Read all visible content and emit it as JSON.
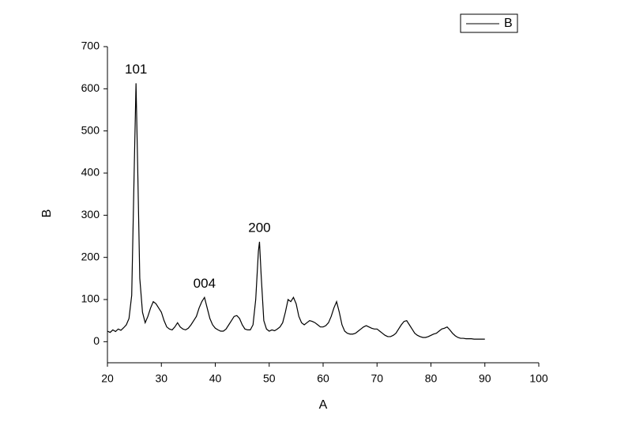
{
  "chart_data": {
    "type": "line",
    "xlabel": "A",
    "ylabel": "B",
    "x": [
      20,
      20.5,
      21,
      21.5,
      22,
      22.5,
      23,
      23.5,
      24,
      24.5,
      25,
      25.3,
      25.6,
      26,
      26.5,
      27,
      27.5,
      28,
      28.5,
      29,
      29.5,
      30,
      30.5,
      31,
      31.5,
      32,
      32.5,
      33,
      33.5,
      34,
      34.5,
      35,
      35.5,
      36,
      36.5,
      37,
      37.5,
      38,
      38.5,
      39,
      39.5,
      40,
      40.5,
      41,
      41.5,
      42,
      42.5,
      43,
      43.5,
      44,
      44.5,
      45,
      45.5,
      46,
      46.5,
      47,
      47.5,
      48,
      48.2,
      48.5,
      49,
      49.5,
      50,
      50.5,
      51,
      51.5,
      52,
      52.5,
      53,
      53.5,
      54,
      54.5,
      55,
      55.5,
      56,
      56.5,
      57,
      57.5,
      58,
      58.5,
      59,
      59.5,
      60,
      60.5,
      61,
      61.5,
      62,
      62.5,
      63,
      63.5,
      64,
      64.5,
      65,
      65.5,
      66,
      66.5,
      67,
      67.5,
      68,
      68.5,
      69,
      69.5,
      70,
      70.5,
      71,
      71.5,
      72,
      72.5,
      73,
      73.5,
      74,
      74.5,
      75,
      75.5,
      76,
      76.5,
      77,
      77.5,
      78,
      78.5,
      79,
      79.5,
      80,
      80.5,
      81,
      81.5,
      82,
      82.5,
      83,
      83.5,
      84,
      84.5,
      85,
      85.5,
      86,
      86.5,
      87,
      87.5,
      88,
      88.5,
      89,
      89.5,
      90
    ],
    "series": [
      {
        "name": "B",
        "color": "#000000",
        "values": [
          25,
          22,
          28,
          24,
          30,
          27,
          33,
          40,
          55,
          110,
          430,
          613,
          420,
          150,
          70,
          45,
          60,
          80,
          95,
          90,
          80,
          70,
          50,
          35,
          30,
          28,
          35,
          45,
          35,
          30,
          28,
          32,
          40,
          50,
          60,
          80,
          95,
          105,
          80,
          55,
          40,
          32,
          28,
          25,
          25,
          30,
          40,
          50,
          60,
          62,
          55,
          40,
          30,
          28,
          28,
          40,
          100,
          215,
          237,
          160,
          50,
          30,
          25,
          28,
          26,
          30,
          35,
          45,
          70,
          100,
          95,
          105,
          90,
          60,
          45,
          40,
          45,
          50,
          48,
          45,
          40,
          35,
          35,
          38,
          45,
          60,
          80,
          95,
          70,
          40,
          25,
          20,
          18,
          18,
          20,
          25,
          30,
          35,
          38,
          35,
          32,
          30,
          30,
          25,
          20,
          15,
          12,
          12,
          15,
          20,
          30,
          40,
          48,
          50,
          40,
          30,
          20,
          15,
          12,
          10,
          10,
          12,
          15,
          18,
          20,
          25,
          30,
          32,
          35,
          28,
          20,
          14,
          10,
          8,
          8,
          7,
          7,
          7,
          6,
          6,
          6,
          6,
          6
        ]
      }
    ],
    "annotations": [
      {
        "text": "101",
        "x": 25.3,
        "y": 613
      },
      {
        "text": "004",
        "x": 38,
        "y": 105
      },
      {
        "text": "200",
        "x": 48.2,
        "y": 237
      }
    ],
    "xlim": [
      20,
      100
    ],
    "xticks": [
      20,
      30,
      40,
      50,
      60,
      70,
      80,
      90,
      100
    ],
    "ylim": [
      -50,
      700
    ],
    "yticks": [
      0,
      100,
      200,
      300,
      400,
      500,
      600,
      700
    ],
    "legend": "top-right"
  }
}
